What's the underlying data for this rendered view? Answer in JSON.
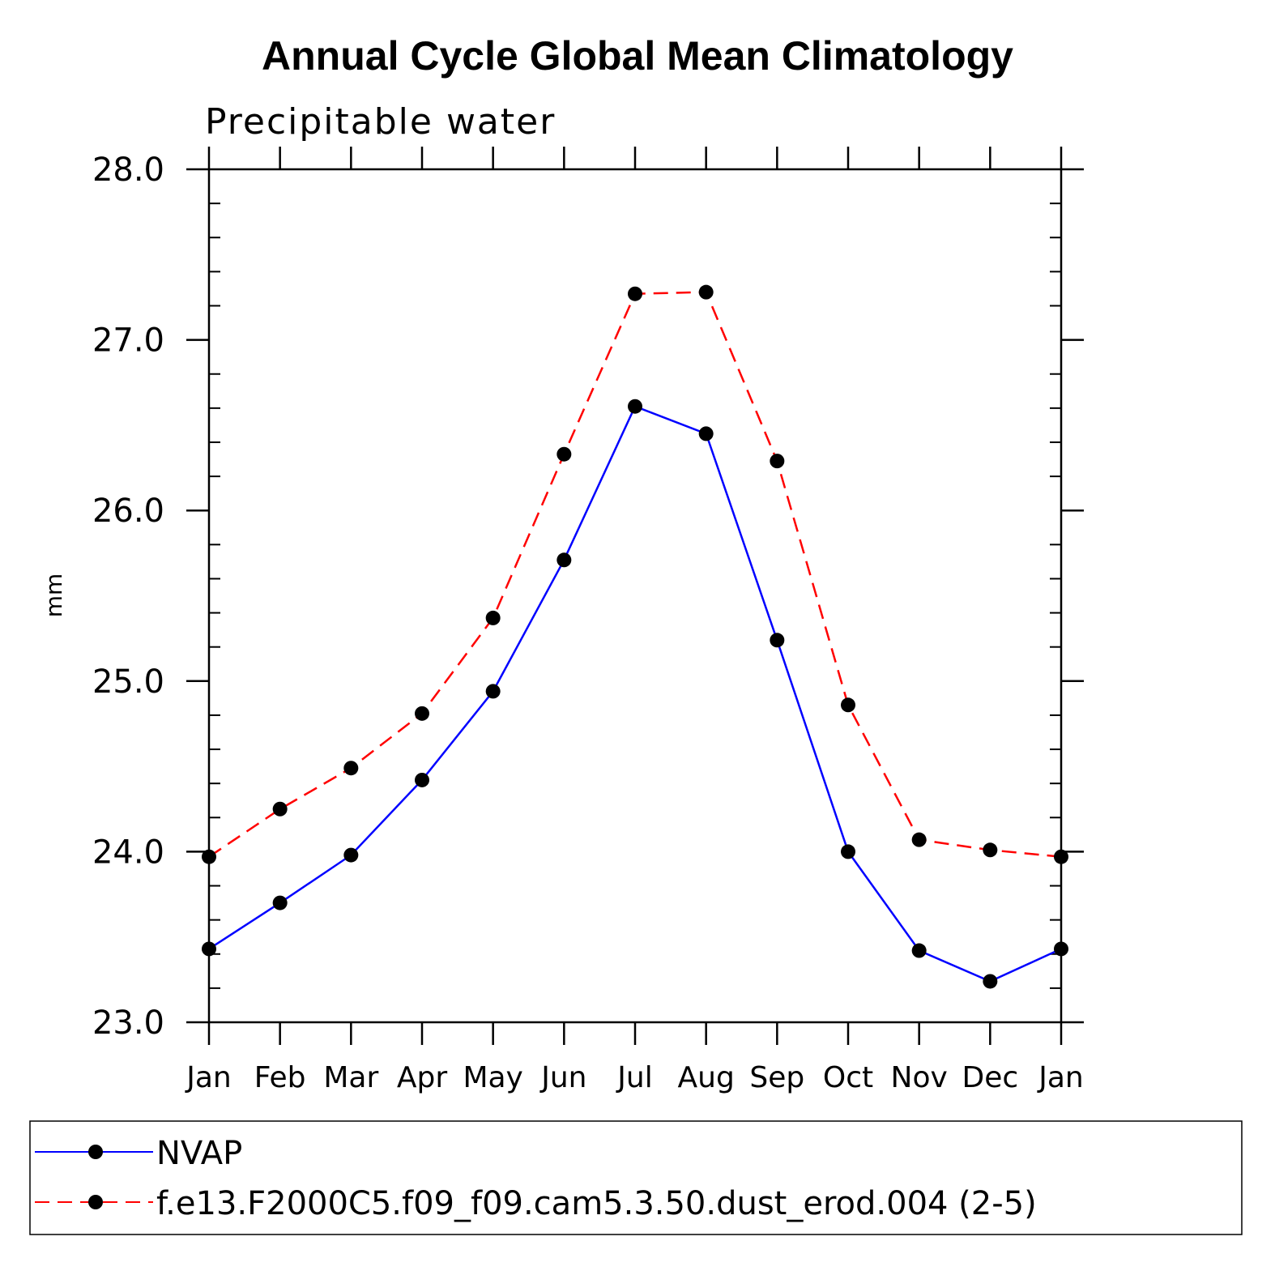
{
  "chart_data": {
    "type": "line",
    "title": "Annual Cycle Global Mean Climatology",
    "subtitle": "Precipitable water",
    "xlabel": "",
    "ylabel": "mm",
    "categories": [
      "Jan",
      "Feb",
      "Mar",
      "Apr",
      "May",
      "Jun",
      "Jul",
      "Aug",
      "Sep",
      "Oct",
      "Nov",
      "Dec",
      "Jan"
    ],
    "ylim": [
      23.0,
      28.0
    ],
    "yticks": [
      "23.0",
      "24.0",
      "25.0",
      "26.0",
      "27.0",
      "28.0"
    ],
    "yticks_values": [
      23.0,
      24.0,
      25.0,
      26.0,
      27.0,
      28.0
    ],
    "minor_tick_step": 0.2,
    "grid": false,
    "legend_placement": "bottom",
    "series": [
      {
        "name": "NVAP",
        "color": "#0000ff",
        "dash": "solid",
        "marker": "filled-circle",
        "values": [
          23.43,
          23.7,
          23.98,
          24.42,
          24.94,
          25.71,
          26.61,
          26.45,
          25.24,
          24.0,
          23.42,
          23.24,
          23.43
        ]
      },
      {
        "name": "f.e13.F2000C5.f09_f09.cam5.3.50.dust_erod.004 (2-5)",
        "color": "#ff0000",
        "dash": "dashed",
        "marker": "filled-circle",
        "values": [
          23.97,
          24.25,
          24.49,
          24.81,
          25.37,
          26.33,
          27.27,
          27.28,
          26.29,
          24.86,
          24.07,
          24.01,
          23.97
        ]
      }
    ]
  }
}
